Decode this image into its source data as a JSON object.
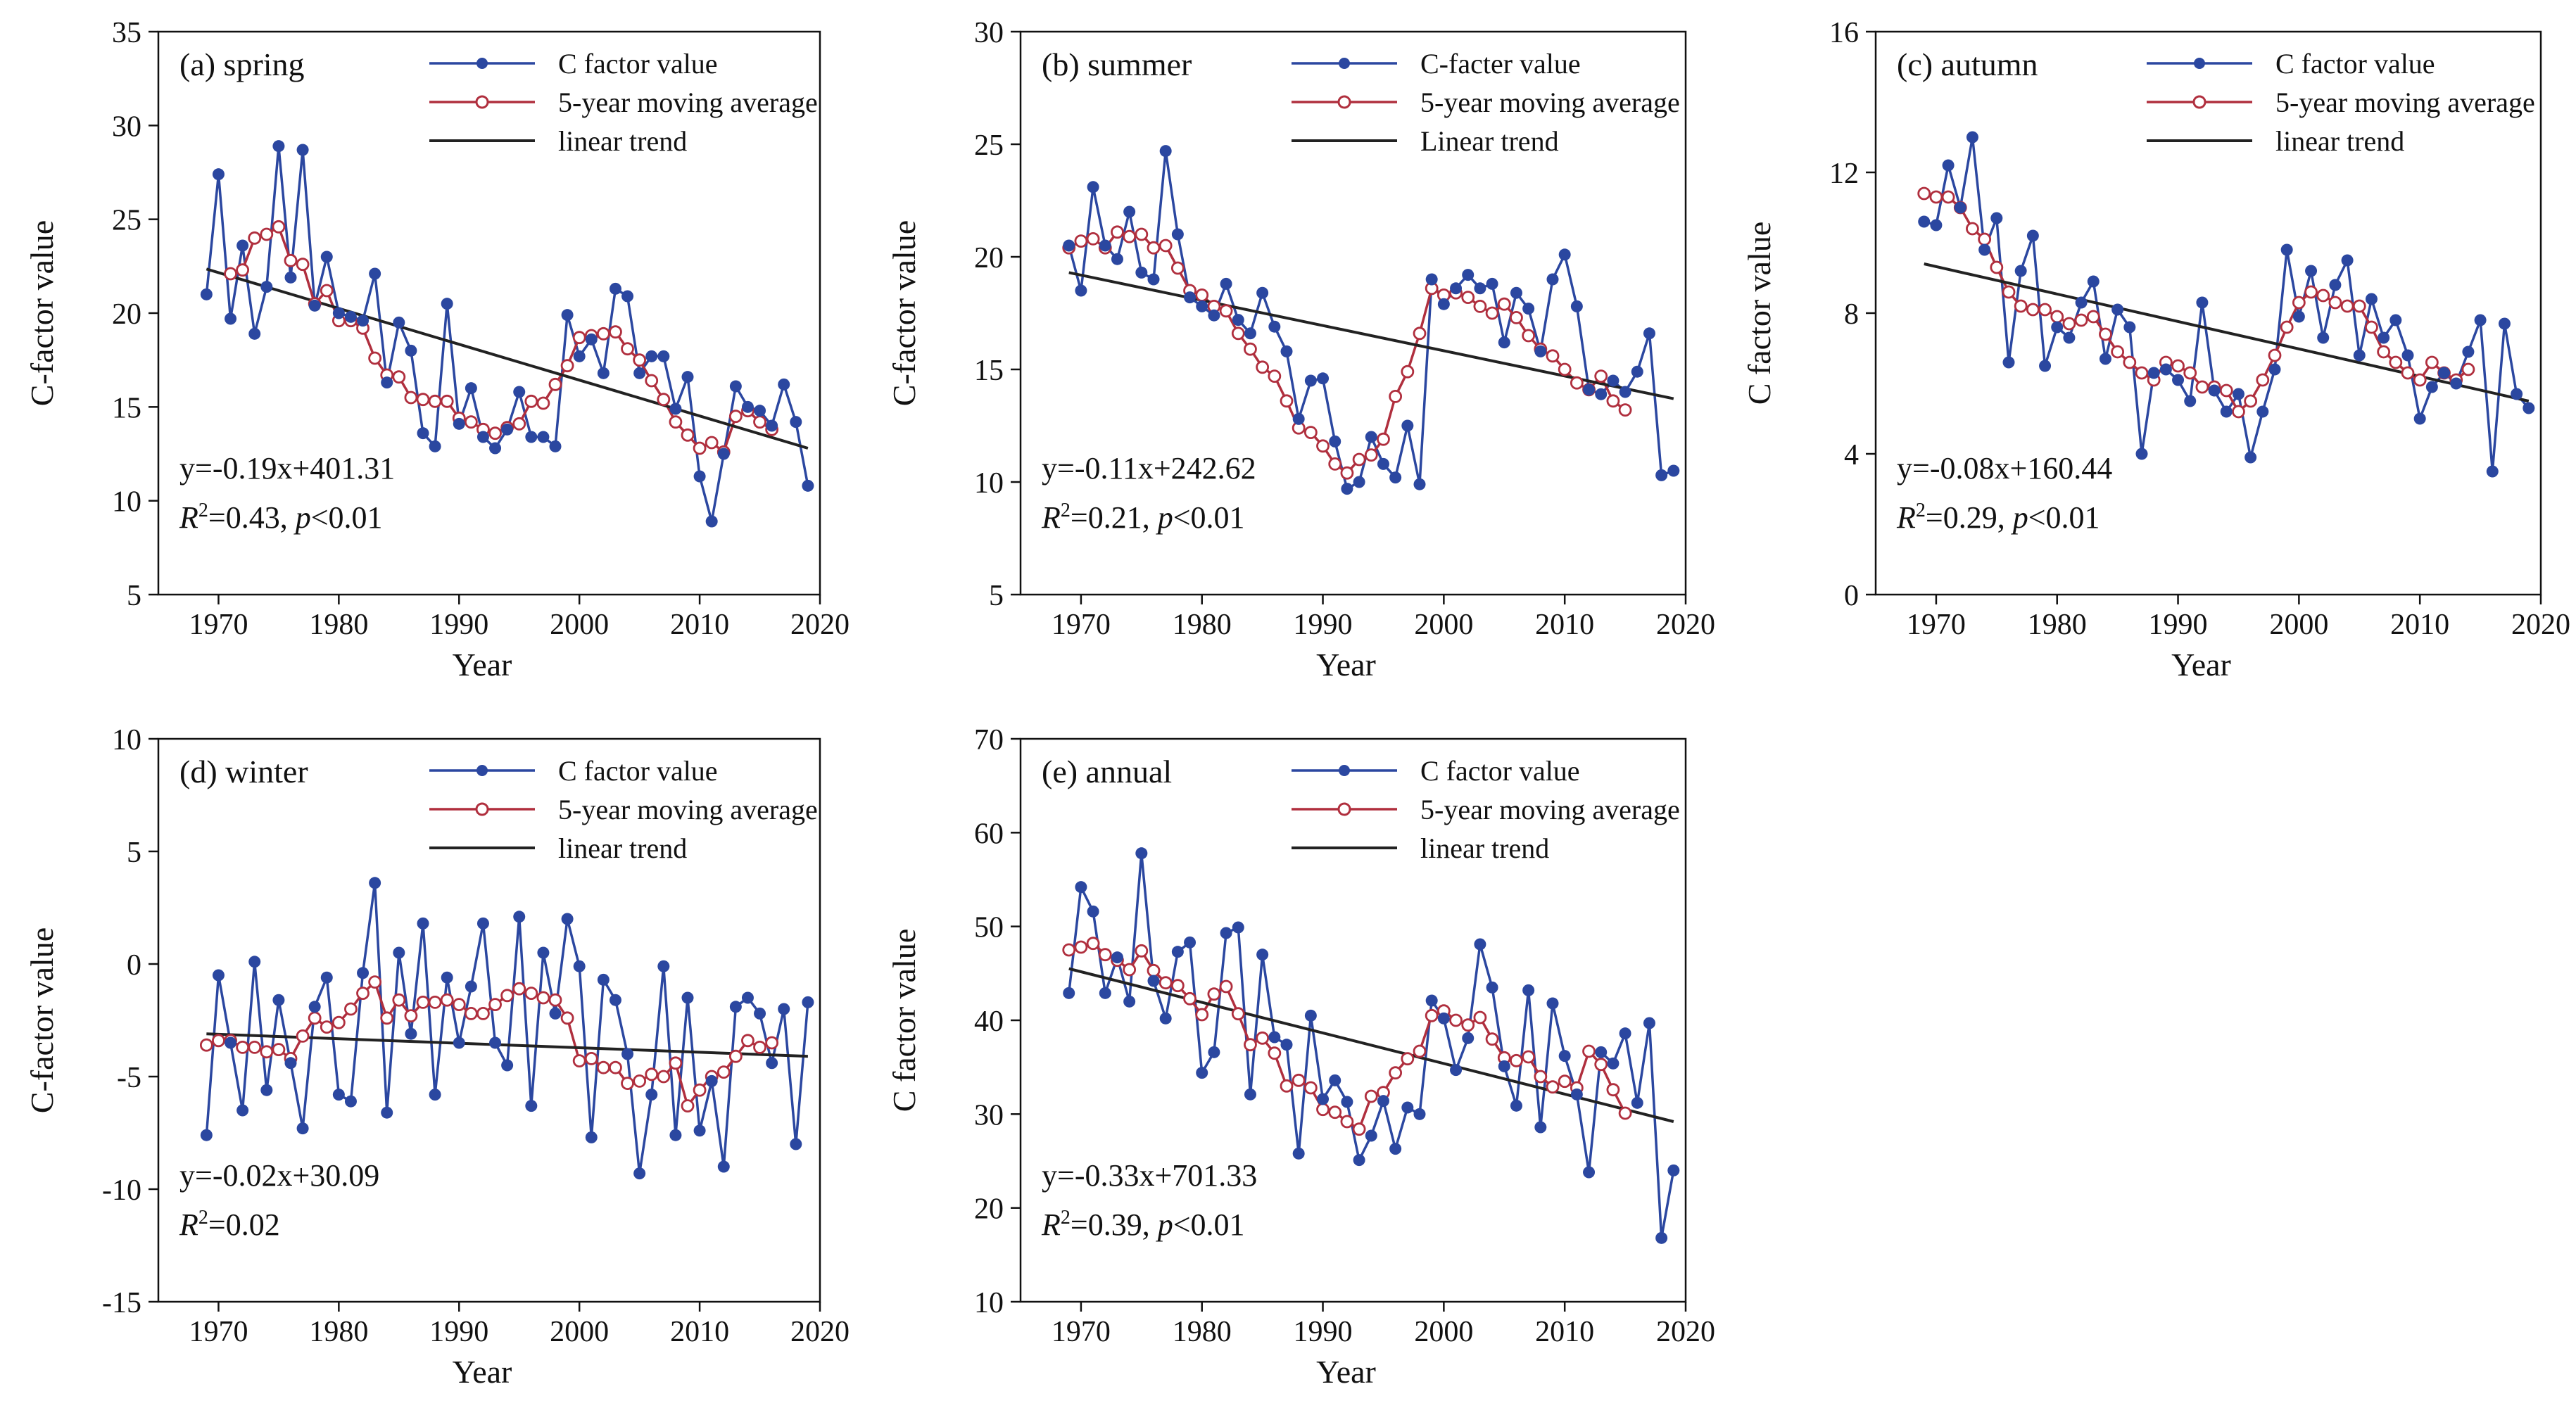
{
  "figure": {
    "colors": {
      "raw": "#2b47a0",
      "moving": "#b02f3e",
      "trend": "#222222",
      "moving_marker_fill": "#ffffff"
    }
  },
  "chart_data": [
    {
      "type": "line",
      "panel": "(a) spring",
      "xlabel": "Year",
      "ylabel": "C-factor value",
      "xlim": [
        1965,
        2020
      ],
      "xticks": [
        1970,
        1980,
        1990,
        2000,
        2010,
        2020
      ],
      "ylim": [
        5,
        35
      ],
      "yticks": [
        5,
        10,
        15,
        20,
        25,
        30,
        35
      ],
      "legend": [
        "C factor value",
        "5-year moving average",
        "linear trend"
      ],
      "equation": "y=-0.19x+401.31",
      "stats": {
        "r2": "=0.43, ",
        "p": "<0.01"
      },
      "x_start": 1969,
      "raw": [
        21.0,
        27.4,
        19.7,
        23.6,
        18.9,
        21.4,
        28.9,
        21.9,
        28.7,
        20.4,
        23.0,
        20.0,
        19.8,
        19.6,
        22.1,
        16.3,
        19.5,
        18.0,
        13.6,
        12.9,
        20.5,
        14.1,
        16.0,
        13.4,
        12.8,
        13.8,
        15.8,
        13.4,
        13.4,
        12.9,
        19.9,
        17.7,
        18.6,
        16.8,
        21.3,
        20.9,
        16.8,
        17.7,
        17.7,
        14.9,
        16.6,
        11.3,
        8.9,
        12.5,
        16.1,
        15.0,
        14.8,
        14.0,
        16.2,
        14.2,
        10.8
      ],
      "moving": [
        null,
        null,
        22.1,
        22.3,
        24.0,
        24.2,
        24.6,
        22.8,
        22.6,
        20.5,
        21.2,
        19.6,
        19.6,
        19.2,
        17.6,
        16.7,
        16.6,
        15.5,
        15.4,
        15.3,
        15.3,
        14.4,
        14.2,
        13.8,
        13.6,
        13.9,
        14.1,
        15.3,
        15.2,
        16.2,
        17.2,
        18.7,
        18.8,
        18.9,
        19.0,
        18.1,
        17.5,
        16.4,
        15.4,
        14.2,
        13.5,
        12.8,
        13.1,
        12.6,
        14.5,
        14.8,
        14.2,
        13.8,
        null,
        null,
        null
      ],
      "trend": {
        "slope": -0.19,
        "intercept": 401.31,
        "x0": 1969,
        "y0": 22.35,
        "x1": 2019,
        "y1": 12.8
      }
    },
    {
      "type": "line",
      "panel": "(b) summer",
      "xlabel": "Year",
      "ylabel": "C-factor value",
      "xlim": [
        1965,
        2020
      ],
      "xticks": [
        1970,
        1980,
        1990,
        2000,
        2010,
        2020
      ],
      "ylim": [
        5,
        30
      ],
      "yticks": [
        5,
        10,
        15,
        20,
        25,
        30
      ],
      "legend": [
        "C-facter value",
        "5-year moving average",
        "Linear trend"
      ],
      "equation": "y=-0.11x+242.62",
      "stats": {
        "r2": "=0.21, ",
        "p": "<0.01"
      },
      "x_start": 1969,
      "raw": [
        20.5,
        18.5,
        23.1,
        20.5,
        19.9,
        22.0,
        19.3,
        19.0,
        24.7,
        21.0,
        18.2,
        17.8,
        17.4,
        18.8,
        17.2,
        16.6,
        18.4,
        16.9,
        15.8,
        12.8,
        14.5,
        14.6,
        11.8,
        9.7,
        10.0,
        12.0,
        10.8,
        10.2,
        12.5,
        9.9,
        19.0,
        17.9,
        18.6,
        19.2,
        18.6,
        18.8,
        16.2,
        18.4,
        17.7,
        15.8,
        19.0,
        20.1,
        17.8,
        14.1,
        13.9,
        14.5,
        14.0,
        14.9,
        16.6,
        10.3,
        10.5
      ],
      "moving": [
        20.4,
        20.7,
        20.8,
        20.4,
        21.1,
        20.9,
        21.0,
        20.4,
        20.5,
        19.5,
        18.5,
        18.3,
        17.8,
        17.6,
        16.6,
        15.9,
        15.1,
        14.7,
        13.6,
        12.4,
        12.2,
        11.6,
        10.8,
        10.4,
        11.0,
        11.2,
        11.9,
        13.8,
        14.9,
        16.6,
        18.6,
        18.3,
        18.4,
        18.2,
        17.8,
        17.5,
        17.9,
        17.3,
        16.5,
        15.9,
        15.6,
        15.0,
        14.4,
        14.1,
        14.7,
        13.6,
        13.2,
        null,
        null,
        null,
        null
      ],
      "trend": {
        "slope": -0.11,
        "intercept": 242.62,
        "x0": 1969,
        "y0": 19.3,
        "x1": 2019,
        "y1": 13.7
      }
    },
    {
      "type": "line",
      "panel": "(c) autumn",
      "xlabel": "Year",
      "ylabel": "C factor value",
      "xlim": [
        1965,
        2020
      ],
      "xticks": [
        1970,
        1980,
        1990,
        2000,
        2010,
        2020
      ],
      "ylim": [
        0,
        16
      ],
      "yticks": [
        0,
        4,
        8,
        12,
        16
      ],
      "legend": [
        "C factor value",
        "5-year moving average",
        "linear trend"
      ],
      "equation": "y=-0.08x+160.44",
      "stats": {
        "r2": "=0.29, ",
        "p": "<0.01"
      },
      "x_start": 1969,
      "raw": [
        10.6,
        10.5,
        12.2,
        11.0,
        13.0,
        9.8,
        10.7,
        6.6,
        9.2,
        10.2,
        6.5,
        7.6,
        7.3,
        8.3,
        8.9,
        6.7,
        8.1,
        7.6,
        4.0,
        6.3,
        6.4,
        6.1,
        5.5,
        8.3,
        5.8,
        5.2,
        5.7,
        3.9,
        5.2,
        6.4,
        9.8,
        7.9,
        9.2,
        7.3,
        8.8,
        9.5,
        6.8,
        8.4,
        7.3,
        7.8,
        6.8,
        5.0,
        5.9,
        6.3,
        6.0,
        6.9,
        7.8,
        3.5,
        7.7,
        5.7,
        5.3
      ],
      "moving": [
        11.4,
        11.3,
        11.3,
        11.0,
        10.4,
        10.1,
        9.3,
        8.6,
        8.2,
        8.1,
        8.1,
        7.9,
        7.7,
        7.8,
        7.9,
        7.4,
        6.9,
        6.6,
        6.3,
        6.1,
        6.6,
        6.5,
        6.3,
        5.9,
        5.9,
        5.8,
        5.2,
        5.5,
        6.1,
        6.8,
        7.6,
        8.3,
        8.6,
        8.5,
        8.3,
        8.2,
        8.2,
        7.6,
        6.9,
        6.6,
        6.3,
        6.1,
        6.6,
        6.3,
        6.1,
        6.4,
        null,
        null,
        null,
        null,
        null
      ],
      "trend": {
        "slope": -0.08,
        "intercept": 160.44,
        "x0": 1969,
        "y0": 9.4,
        "x1": 2019,
        "y1": 5.5
      }
    },
    {
      "type": "line",
      "panel": "(d) winter",
      "xlabel": "Year",
      "ylabel": "C-factor value",
      "xlim": [
        1965,
        2020
      ],
      "xticks": [
        1970,
        1980,
        1990,
        2000,
        2010,
        2020
      ],
      "ylim": [
        -15,
        10
      ],
      "yticks": [
        -15,
        -10,
        -5,
        0,
        5,
        10
      ],
      "legend": [
        "C factor value",
        "5-year moving average",
        "linear trend"
      ],
      "equation": "y=-0.02x+30.09",
      "stats": {
        "r2": "=0.02",
        "p": ""
      },
      "x_start": 1969,
      "raw": [
        -7.6,
        -0.5,
        -3.5,
        -6.5,
        0.1,
        -5.6,
        -1.6,
        -4.4,
        -7.3,
        -1.9,
        -0.6,
        -5.8,
        -6.1,
        -0.4,
        3.6,
        -6.6,
        0.5,
        -3.1,
        1.8,
        -5.8,
        -0.6,
        -3.5,
        -1.0,
        1.8,
        -3.5,
        -4.5,
        2.1,
        -6.3,
        0.5,
        -2.2,
        2.0,
        -0.1,
        -7.7,
        -0.7,
        -1.6,
        -4.0,
        -9.3,
        -5.8,
        -0.1,
        -7.6,
        -1.5,
        -7.4,
        -5.2,
        -9.0,
        -1.9,
        -1.5,
        -2.2,
        -4.4,
        -2.0,
        -8.0,
        -1.7
      ],
      "moving": [
        -3.6,
        -3.4,
        -3.4,
        -3.7,
        -3.7,
        -3.9,
        -3.8,
        -4.2,
        -3.2,
        -2.4,
        -2.8,
        -2.6,
        -2.0,
        -1.3,
        -0.8,
        -2.4,
        -1.6,
        -2.3,
        -1.7,
        -1.7,
        -1.6,
        -1.8,
        -2.2,
        -2.2,
        -1.8,
        -1.4,
        -1.1,
        -1.3,
        -1.5,
        -1.6,
        -2.4,
        -4.3,
        -4.2,
        -4.6,
        -4.6,
        -5.3,
        -5.2,
        -4.9,
        -5.0,
        -4.4,
        -6.3,
        -5.6,
        -5.0,
        -4.8,
        -4.1,
        -3.4,
        -3.7,
        -3.5,
        null,
        null,
        null
      ],
      "trend": {
        "slope": -0.02,
        "intercept": 30.09,
        "x0": 1969,
        "y0": -3.1,
        "x1": 2019,
        "y1": -4.1
      }
    },
    {
      "type": "line",
      "panel": "(e) annual",
      "xlabel": "Year",
      "ylabel": "C factor value",
      "xlim": [
        1965,
        2020
      ],
      "xticks": [
        1970,
        1980,
        1990,
        2000,
        2010,
        2020
      ],
      "ylim": [
        10,
        70
      ],
      "yticks": [
        10,
        20,
        30,
        40,
        50,
        60,
        70
      ],
      "legend": [
        "C factor value",
        "5-year moving average",
        "linear trend"
      ],
      "equation": "y=-0.33x+701.33",
      "stats": {
        "r2": "=0.39, ",
        "p": "<0.01"
      },
      "x_start": 1969,
      "raw": [
        42.9,
        54.2,
        51.6,
        42.9,
        46.7,
        42.0,
        57.8,
        44.2,
        40.2,
        47.3,
        48.3,
        34.4,
        36.6,
        49.3,
        49.9,
        32.1,
        47.0,
        38.2,
        37.4,
        25.8,
        40.5,
        31.6,
        33.6,
        31.3,
        25.1,
        27.7,
        31.4,
        26.3,
        30.7,
        30.0,
        42.1,
        40.2,
        34.7,
        38.1,
        48.1,
        43.5,
        35.1,
        30.9,
        43.2,
        28.6,
        41.8,
        36.2,
        32.1,
        23.8,
        36.6,
        35.4,
        38.6,
        31.2,
        39.7,
        16.8,
        24.0
      ],
      "moving": [
        47.5,
        47.8,
        48.2,
        47.0,
        46.4,
        45.4,
        47.4,
        45.3,
        44.0,
        43.7,
        42.3,
        40.6,
        42.8,
        43.6,
        40.7,
        37.4,
        38.1,
        36.5,
        33.0,
        33.6,
        32.8,
        30.5,
        30.2,
        29.2,
        28.4,
        31.9,
        32.3,
        34.4,
        35.9,
        36.7,
        40.5,
        41.0,
        40.0,
        39.5,
        40.3,
        38.0,
        36.0,
        35.7,
        36.1,
        34.0,
        32.9,
        33.5,
        32.8,
        36.7,
        35.3,
        32.6,
        30.1,
        null,
        null,
        null,
        null
      ],
      "trend": {
        "slope": -0.33,
        "intercept": 701.33,
        "x0": 1969,
        "y0": 45.5,
        "x1": 2019,
        "y1": 29.2
      }
    }
  ]
}
